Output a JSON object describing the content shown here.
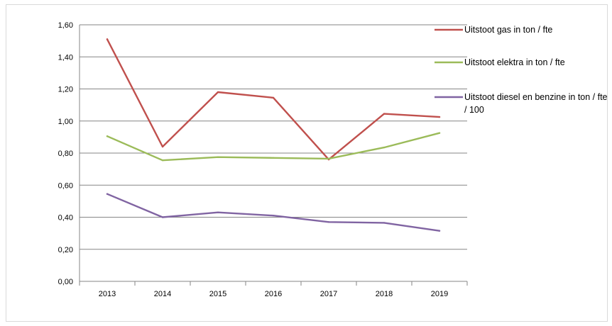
{
  "chart_data": {
    "type": "line",
    "title": "",
    "xlabel": "",
    "ylabel": "",
    "categories": [
      "2013",
      "2014",
      "2015",
      "2016",
      "2017",
      "2018",
      "2019"
    ],
    "ylim": [
      0,
      1.6
    ],
    "y_ticks": [
      "0,00",
      "0,20",
      "0,40",
      "0,60",
      "0,80",
      "1,00",
      "1,20",
      "1,40",
      "1,60"
    ],
    "grid": true,
    "legend_position": "right",
    "series": [
      {
        "name": "Uitstoot gas in ton / fte",
        "name_lines": [
          "Uitstoot gas in ton / fte"
        ],
        "color": "#c0504d",
        "values": [
          1.51,
          0.84,
          1.18,
          1.145,
          0.76,
          1.045,
          1.025
        ]
      },
      {
        "name": "Uitstoot elektra in ton / fte",
        "name_lines": [
          "Uitstoot elektra in ton / fte"
        ],
        "color": "#9bbb59",
        "values": [
          0.905,
          0.755,
          0.775,
          0.77,
          0.765,
          0.835,
          0.925
        ]
      },
      {
        "name": "Uitstoot diesel en benzine in ton / fte / 100",
        "name_lines": [
          "Uitstoot diesel en benzine in ton / fte",
          "/ 100"
        ],
        "color": "#8064a2",
        "values": [
          0.545,
          0.4,
          0.43,
          0.41,
          0.37,
          0.365,
          0.315
        ]
      }
    ]
  }
}
